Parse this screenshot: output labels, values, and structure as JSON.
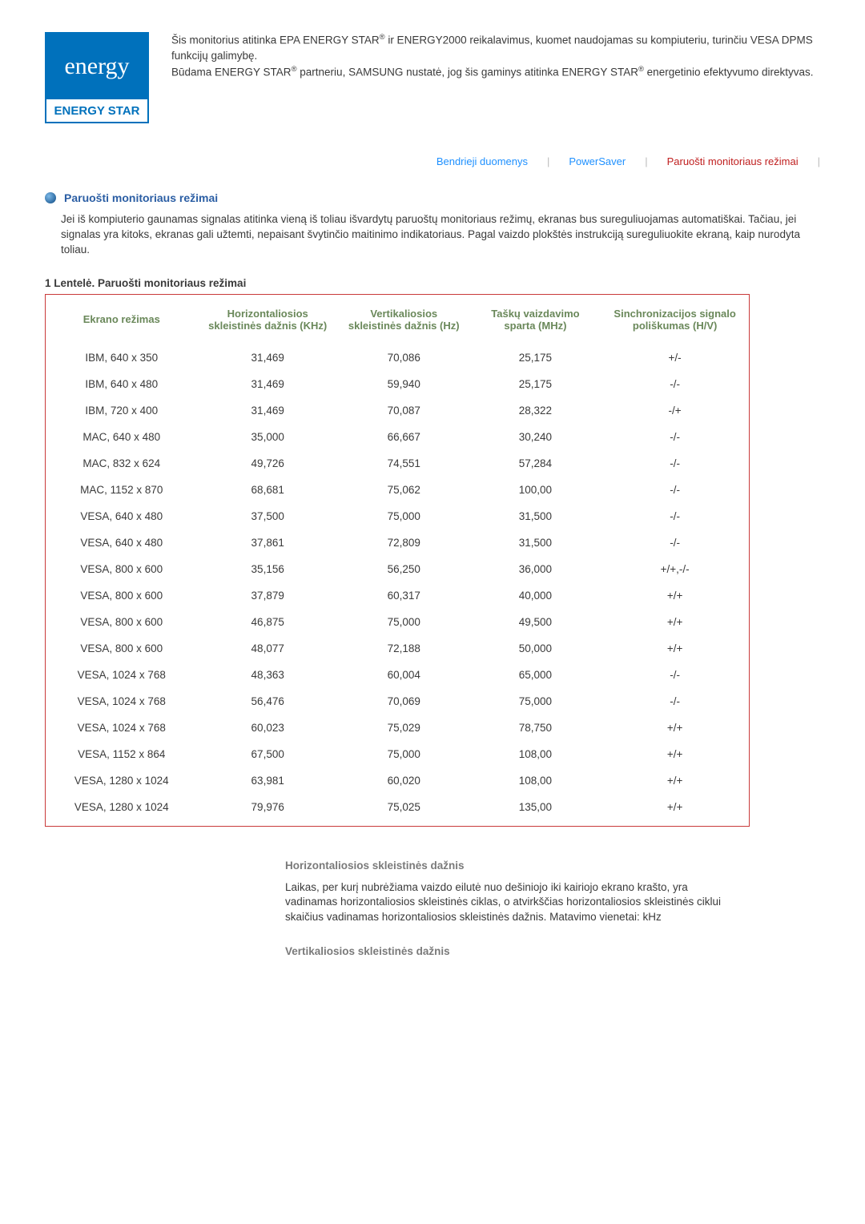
{
  "logo": {
    "script": "energy",
    "label": "ENERGY STAR"
  },
  "intro": {
    "l1a": "Šis monitorius atitinka EPA ENERGY STAR",
    "l1b": " ir ENERGY2000 reikalavimus, kuomet naudojamas su kompiuteriu, turinčiu VESA DPMS funkcijų galimybę.",
    "l2a": "Būdama ENERGY STAR",
    "l2b": " partneriu, SAMSUNG nustatė, jog šis gaminys atitinka ENERGY STAR",
    "l2c": " energetinio efektyvumo direktyvas."
  },
  "tabs": {
    "t1": "Bendrieji duomenys",
    "t2": "PowerSaver",
    "t3": "Paruošti monitoriaus režimai"
  },
  "section": {
    "title": "Paruošti monitoriaus režimai",
    "body": "Jei iš kompiuterio gaunamas signalas atitinka vieną iš toliau išvardytų paruoštų monitoriaus režimų, ekranas bus sureguliuojamas automatiškai. Tačiau, jei signalas yra kitoks, ekranas gali užtemti, nepaisant švytinčio maitinimo indikatoriaus. Pagal vaizdo plokštės instrukciją sureguliuokite ekraną, kaip nurodyta toliau."
  },
  "table": {
    "caption": "1 Lentelė. Paruošti monitoriaus režimai",
    "headers": {
      "c1": "Ekrano režimas",
      "c2": "Horizontaliosios skleistinės dažnis (KHz)",
      "c3": "Vertikaliosios skleistinės dažnis (Hz)",
      "c4": "Taškų vaizdavimo sparta (MHz)",
      "c5": "Sinchronizacijos signalo poliškumas (H/V)"
    },
    "rows": [
      {
        "c1": "IBM, 640 x 350",
        "c2": "31,469",
        "c3": "70,086",
        "c4": "25,175",
        "c5": "+/-"
      },
      {
        "c1": "IBM, 640 x 480",
        "c2": "31,469",
        "c3": "59,940",
        "c4": "25,175",
        "c5": "-/-"
      },
      {
        "c1": "IBM, 720 x 400",
        "c2": "31,469",
        "c3": "70,087",
        "c4": "28,322",
        "c5": "-/+"
      },
      {
        "c1": "MAC, 640 x 480",
        "c2": "35,000",
        "c3": "66,667",
        "c4": "30,240",
        "c5": "-/-"
      },
      {
        "c1": "MAC, 832 x 624",
        "c2": "49,726",
        "c3": "74,551",
        "c4": "57,284",
        "c5": "-/-"
      },
      {
        "c1": "MAC, 1152 x 870",
        "c2": "68,681",
        "c3": "75,062",
        "c4": "100,00",
        "c5": "-/-"
      },
      {
        "c1": "VESA, 640 x 480",
        "c2": "37,500",
        "c3": "75,000",
        "c4": "31,500",
        "c5": "-/-"
      },
      {
        "c1": "VESA, 640 x 480",
        "c2": "37,861",
        "c3": "72,809",
        "c4": "31,500",
        "c5": "-/-"
      },
      {
        "c1": "VESA, 800 x 600",
        "c2": "35,156",
        "c3": "56,250",
        "c4": "36,000",
        "c5": "+/+,-/-"
      },
      {
        "c1": "VESA, 800 x 600",
        "c2": "37,879",
        "c3": "60,317",
        "c4": "40,000",
        "c5": "+/+"
      },
      {
        "c1": "VESA, 800 x 600",
        "c2": "46,875",
        "c3": "75,000",
        "c4": "49,500",
        "c5": "+/+"
      },
      {
        "c1": "VESA, 800 x 600",
        "c2": "48,077",
        "c3": "72,188",
        "c4": "50,000",
        "c5": "+/+"
      },
      {
        "c1": "VESA, 1024 x 768",
        "c2": "48,363",
        "c3": "60,004",
        "c4": "65,000",
        "c5": "-/-"
      },
      {
        "c1": "VESA, 1024 x 768",
        "c2": "56,476",
        "c3": "70,069",
        "c4": "75,000",
        "c5": "-/-"
      },
      {
        "c1": "VESA, 1024 x 768",
        "c2": "60,023",
        "c3": "75,029",
        "c4": "78,750",
        "c5": "+/+"
      },
      {
        "c1": "VESA, 1152 x 864",
        "c2": "67,500",
        "c3": "75,000",
        "c4": "108,00",
        "c5": "+/+"
      },
      {
        "c1": "VESA, 1280 x 1024",
        "c2": "63,981",
        "c3": "60,020",
        "c4": "108,00",
        "c5": "+/+"
      },
      {
        "c1": "VESA, 1280 x 1024",
        "c2": "79,976",
        "c3": "75,025",
        "c4": "135,00",
        "c5": "+/+"
      }
    ]
  },
  "notes": {
    "h1": "Horizontaliosios skleistinės dažnis",
    "p1": "Laikas, per kurį nubrėžiama vaizdo eilutė nuo dešiniojo iki kairiojo ekrano krašto, yra vadinamas horizontaliosios skleistinės ciklas, o atvirkščias horizontaliosios skleistinės ciklui skaičius vadinamas horizontaliosios skleistinės dažnis. Matavimo vienetai: kHz",
    "h2": "Vertikaliosios skleistinės dažnis"
  }
}
